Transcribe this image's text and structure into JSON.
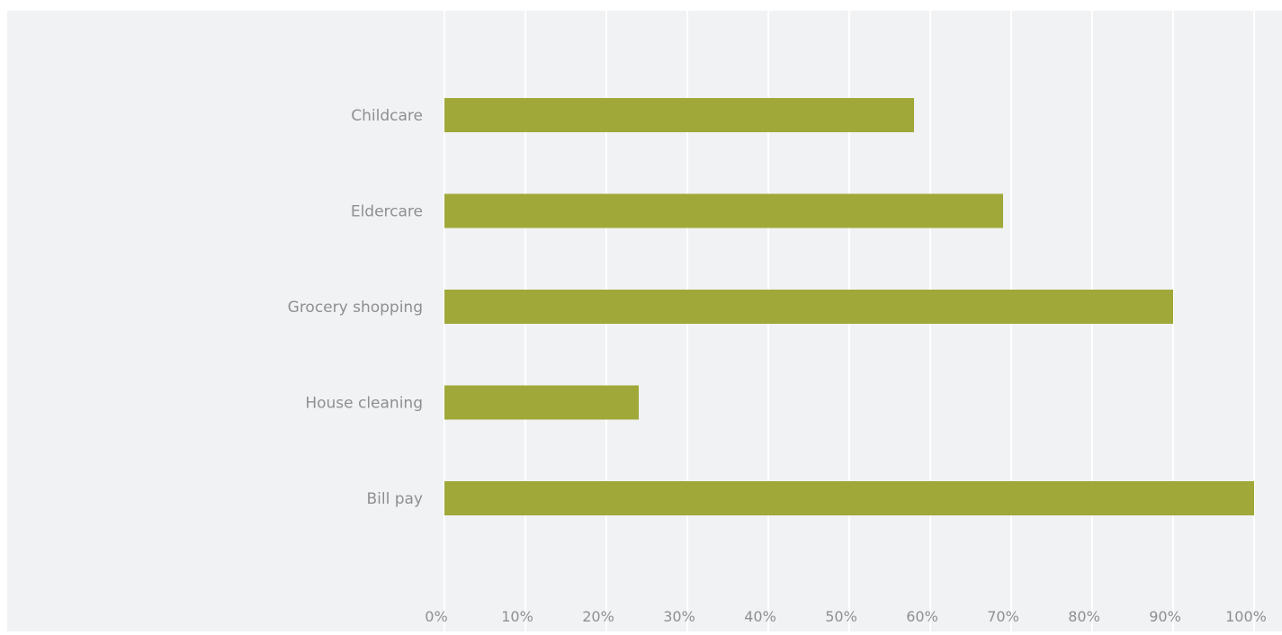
{
  "chart_data": {
    "type": "bar",
    "orientation": "horizontal",
    "title": "",
    "xlabel": "",
    "ylabel": "",
    "categories": [
      "Childcare",
      "Eldercare",
      "Grocery shopping",
      "House cleaning",
      "Bill pay"
    ],
    "values": [
      0.58,
      0.69,
      0.9,
      0.24,
      1.0
    ],
    "value_format": "percent",
    "xlim": [
      0,
      1
    ],
    "x_ticks": [
      "0%",
      "10%",
      "20%",
      "30%",
      "40%",
      "50%",
      "60%",
      "70%",
      "80%",
      "90%",
      "100%"
    ],
    "grid": true,
    "legend": "none",
    "colors": {
      "bar": "#a0a839",
      "background": "#f1f2f4",
      "gridline": "#ffffff",
      "text": "#8f8f8f"
    }
  }
}
